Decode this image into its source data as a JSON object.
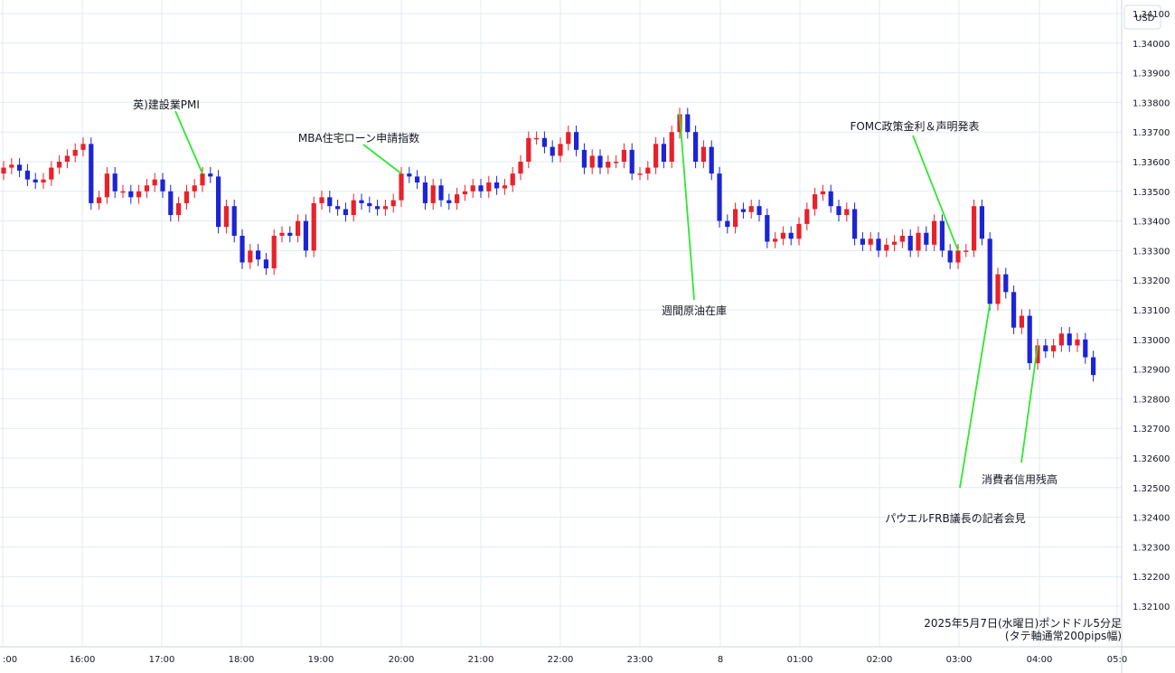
{
  "chart_data": {
    "type": "candlestick",
    "currency": "USD",
    "note_line1": "2025年5月7日(水曜日)ポンドドル5分足",
    "note_line2": "(タテ軸通常200pips幅)",
    "ylim": [
      1.3205,
      1.3418
    ],
    "y_ticks": [
      "1.34100",
      "1.34000",
      "1.33900",
      "1.33800",
      "1.33700",
      "1.33600",
      "1.33500",
      "1.33400",
      "1.33300",
      "1.33200",
      "1.33100",
      "1.33000",
      "1.32900",
      "1.32800",
      "1.32700",
      "1.32600",
      "1.32500",
      "1.32400",
      "1.32300",
      "1.32200",
      "1.32100"
    ],
    "x_ticks": [
      ":00",
      "16:00",
      "17:00",
      "18:00",
      "19:00",
      "20:00",
      "21:00",
      "22:00",
      "23:00",
      "8",
      "01:00",
      "02:00",
      "03:00",
      "04:00",
      "05:0"
    ],
    "colors": {
      "up": "#e8212b",
      "down": "#1c24d6",
      "callout": "#2ee82e",
      "grid": "#e1ecf2"
    },
    "annotations": [
      {
        "text": "英)建設業PMI",
        "bar": 25
      },
      {
        "text": "MBA住宅ローン申請指数",
        "bar": 50
      },
      {
        "text": "週間原油在庫",
        "bar": 85
      },
      {
        "text": "FOMC政策金利＆声明発表",
        "bar": 120
      },
      {
        "text": "パウエルFRB議長の記者会見",
        "bar": 124
      },
      {
        "text": "消費者信用残高",
        "bar": 130
      }
    ],
    "closes": [
      1.3358,
      1.3359,
      1.3357,
      1.3354,
      1.3353,
      1.3354,
      1.3358,
      1.336,
      1.3362,
      1.3364,
      1.3366,
      1.3346,
      1.3348,
      1.3356,
      1.335,
      1.335,
      1.3348,
      1.335,
      1.3352,
      1.3354,
      1.335,
      1.3342,
      1.3346,
      1.335,
      1.3352,
      1.3356,
      1.3355,
      1.3338,
      1.3345,
      1.3335,
      1.3326,
      1.333,
      1.3327,
      1.3324,
      1.3335,
      1.3336,
      1.3335,
      1.334,
      1.333,
      1.3346,
      1.3348,
      1.3345,
      1.3344,
      1.3342,
      1.3347,
      1.3346,
      1.3345,
      1.3344,
      1.3345,
      1.3347,
      1.3356,
      1.3355,
      1.3353,
      1.3346,
      1.3352,
      1.3347,
      1.3346,
      1.3349,
      1.335,
      1.3352,
      1.335,
      1.3353,
      1.3351,
      1.3352,
      1.3356,
      1.336,
      1.3368,
      1.3368,
      1.3365,
      1.3362,
      1.3366,
      1.337,
      1.3364,
      1.3358,
      1.3362,
      1.3358,
      1.336,
      1.336,
      1.3364,
      1.3356,
      1.3356,
      1.3358,
      1.3366,
      1.336,
      1.337,
      1.3376,
      1.337,
      1.336,
      1.3365,
      1.3356,
      1.334,
      1.3338,
      1.3344,
      1.3343,
      1.3345,
      1.3342,
      1.3333,
      1.3334,
      1.3336,
      1.3334,
      1.3339,
      1.3344,
      1.3349,
      1.335,
      1.3345,
      1.3342,
      1.3344,
      1.3334,
      1.3332,
      1.3334,
      1.333,
      1.3332,
      1.3333,
      1.3335,
      1.333,
      1.3336,
      1.3332,
      1.334,
      1.333,
      1.3326,
      1.333,
      1.333,
      1.3345,
      1.3334,
      1.3312,
      1.3322,
      1.3316,
      1.3304,
      1.3308,
      1.3292,
      1.3298,
      1.3296,
      1.3298,
      1.3302,
      1.3298,
      1.33,
      1.3294,
      1.3288
    ],
    "first_open": 1.3356
  },
  "labels": {
    "note_line1": "2025年5月7日(水曜日)ポンドドル5分足",
    "note_line2": "(タテ軸通常200pips幅)"
  }
}
